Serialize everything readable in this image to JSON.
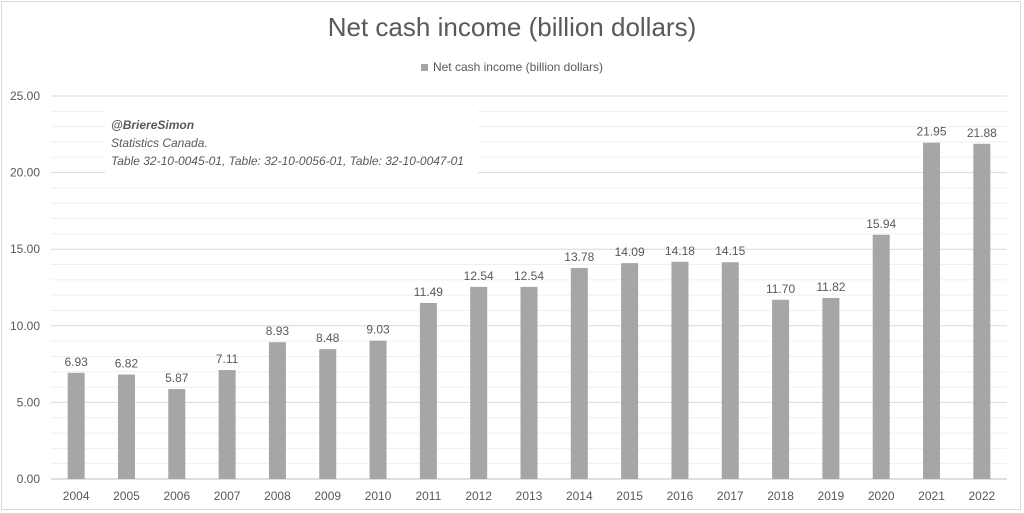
{
  "chart_data": {
    "type": "bar",
    "title": "Net cash income (billion dollars)",
    "legend": "Net cash income (billion dollars)",
    "legend_position": "top",
    "grid": true,
    "color": "#a6a6a6",
    "ylim": [
      0,
      25
    ],
    "y_ticks": [
      "0.00",
      "5.00",
      "10.00",
      "15.00",
      "20.00",
      "25.00"
    ],
    "categories": [
      "2004",
      "2005",
      "2006",
      "2007",
      "2008",
      "2009",
      "2010",
      "2011",
      "2012",
      "2013",
      "2014",
      "2015",
      "2016",
      "2017",
      "2018",
      "2019",
      "2020",
      "2021",
      "2022"
    ],
    "values": [
      6.93,
      6.82,
      5.87,
      7.11,
      8.93,
      8.48,
      9.03,
      11.49,
      12.54,
      12.54,
      13.78,
      14.09,
      14.18,
      14.15,
      11.7,
      11.82,
      15.94,
      21.95,
      21.88
    ],
    "value_labels": [
      "6.93",
      "6.82",
      "5.87",
      "7.11",
      "8.93",
      "8.48",
      "9.03",
      "11.49",
      "12.54",
      "12.54",
      "13.78",
      "14.09",
      "14.18",
      "14.15",
      "11.70",
      "11.82",
      "15.94",
      "21.95",
      "21.88"
    ]
  },
  "annotation": {
    "handle": "@BriereSimon",
    "source_line1": "Statistics Canada.",
    "source_line2": "Table 32-10-0045-01, Table: 32-10-0056-01, Table: 32-10-0047-01"
  }
}
